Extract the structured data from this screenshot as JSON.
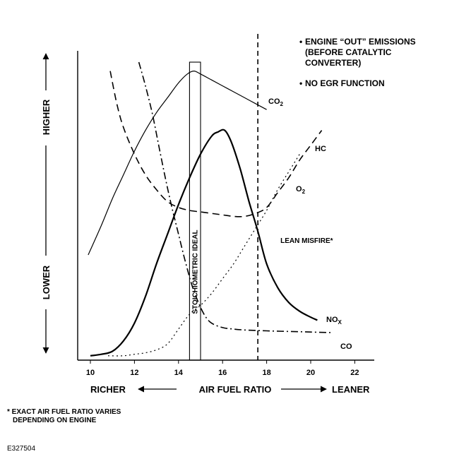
{
  "chart_data": {
    "type": "line",
    "title": "",
    "xlabel": "AIR FUEL RATIO",
    "xlabel_left": "RICHER",
    "xlabel_right": "LEANER",
    "ylabel_top": "HIGHER",
    "ylabel_bottom": "LOWER",
    "x_ticks": [
      "10",
      "12",
      "14",
      "16",
      "18",
      "20",
      "22"
    ],
    "xlim": [
      9.5,
      22.5
    ],
    "ylim": [
      0,
      100
    ],
    "stoichiometric_label": "STOICHIOMETRIC IDEAL",
    "stoichiometric_range": [
      14.5,
      15.0
    ],
    "lean_misfire_label": "LEAN MISFIRE*",
    "lean_misfire_x": 17.6,
    "series": [
      {
        "name": "CO2",
        "label_main": "CO",
        "label_sub": "2",
        "style": "solid",
        "width": 1.2,
        "points": [
          [
            9.9,
            35
          ],
          [
            10.5,
            45
          ],
          [
            11,
            54
          ],
          [
            11.5,
            62
          ],
          [
            12,
            70
          ],
          [
            12.5,
            77
          ],
          [
            13,
            83
          ],
          [
            13.5,
            88
          ],
          [
            14,
            93
          ],
          [
            14.4,
            96
          ],
          [
            14.7,
            97
          ],
          [
            15,
            96
          ],
          [
            15.5,
            94
          ],
          [
            16,
            92
          ],
          [
            16.5,
            90
          ],
          [
            17,
            88
          ],
          [
            17.5,
            86
          ],
          [
            18,
            84
          ]
        ]
      },
      {
        "name": "NOx",
        "label_main": "NO",
        "label_sub": "X",
        "style": "solid",
        "width": 2.2,
        "points": [
          [
            10,
            1
          ],
          [
            10.5,
            1.5
          ],
          [
            11,
            2.5
          ],
          [
            11.5,
            6
          ],
          [
            12,
            12
          ],
          [
            12.5,
            21
          ],
          [
            13,
            32
          ],
          [
            13.5,
            42
          ],
          [
            14,
            52
          ],
          [
            14.5,
            61
          ],
          [
            15,
            69
          ],
          [
            15.5,
            75
          ],
          [
            15.8,
            76.5
          ],
          [
            16.1,
            77
          ],
          [
            16.4,
            73
          ],
          [
            16.8,
            64
          ],
          [
            17.2,
            53
          ],
          [
            17.6,
            43
          ],
          [
            18,
            32
          ],
          [
            18.5,
            24
          ],
          [
            19,
            19
          ],
          [
            19.5,
            16
          ],
          [
            20,
            14
          ],
          [
            20.3,
            13
          ]
        ]
      },
      {
        "name": "HC",
        "label_main": "HC",
        "label_sub": "",
        "style": "dash",
        "width": 1.6,
        "points": [
          [
            10.9,
            97
          ],
          [
            11.2,
            86
          ],
          [
            11.5,
            78
          ],
          [
            12,
            69
          ],
          [
            12.5,
            62
          ],
          [
            13,
            57
          ],
          [
            13.5,
            53
          ],
          [
            14,
            51
          ],
          [
            14.5,
            50
          ],
          [
            15,
            49.5
          ],
          [
            15.5,
            49
          ],
          [
            16,
            48.5
          ],
          [
            16.5,
            48
          ],
          [
            17,
            48
          ],
          [
            17.5,
            49
          ],
          [
            18,
            51
          ],
          [
            18.5,
            56
          ],
          [
            19,
            61
          ],
          [
            19.5,
            67
          ],
          [
            20,
            72
          ],
          [
            20.5,
            77
          ]
        ]
      },
      {
        "name": "O2",
        "label_main": "O",
        "label_sub": "2",
        "style": "dot",
        "width": 1.2,
        "points": [
          [
            10.8,
            1
          ],
          [
            11.5,
            1
          ],
          [
            12,
            1.5
          ],
          [
            12.5,
            2
          ],
          [
            13,
            3
          ],
          [
            13.5,
            5
          ],
          [
            14,
            10
          ],
          [
            14.5,
            15
          ],
          [
            15,
            18
          ],
          [
            15.5,
            22
          ],
          [
            16,
            27
          ],
          [
            16.5,
            32
          ],
          [
            17,
            38
          ],
          [
            17.5,
            44
          ],
          [
            18,
            50
          ],
          [
            18.5,
            57
          ],
          [
            19,
            63
          ],
          [
            19.5,
            69
          ]
        ]
      },
      {
        "name": "CO",
        "label_main": "CO",
        "label_sub": "",
        "style": "dashdot",
        "width": 1.6,
        "points": [
          [
            12.2,
            100
          ],
          [
            12.5,
            92
          ],
          [
            12.8,
            83
          ],
          [
            13.1,
            72
          ],
          [
            13.4,
            61
          ],
          [
            13.7,
            51
          ],
          [
            14,
            42
          ],
          [
            14.3,
            33
          ],
          [
            14.6,
            25
          ],
          [
            14.9,
            19
          ],
          [
            15.2,
            14.5
          ],
          [
            15.5,
            12
          ],
          [
            16,
            10.5
          ],
          [
            16.5,
            10
          ],
          [
            17,
            9.7
          ],
          [
            18,
            9.4
          ],
          [
            19,
            9.2
          ],
          [
            20,
            9
          ],
          [
            21,
            8.8
          ]
        ]
      }
    ]
  },
  "notes": [
    {
      "lines": [
        "ENGINE “OUT” EMISSIONS",
        "(BEFORE CATALYTIC",
        "CONVERTER)"
      ]
    },
    {
      "lines": [
        "NO EGR FUNCTION"
      ]
    }
  ],
  "footnote": [
    "* EXACT AIR FUEL RATIO VARIES",
    "DEPENDING ON ENGINE"
  ],
  "figure_id": "E327504",
  "bullet_char": "•"
}
